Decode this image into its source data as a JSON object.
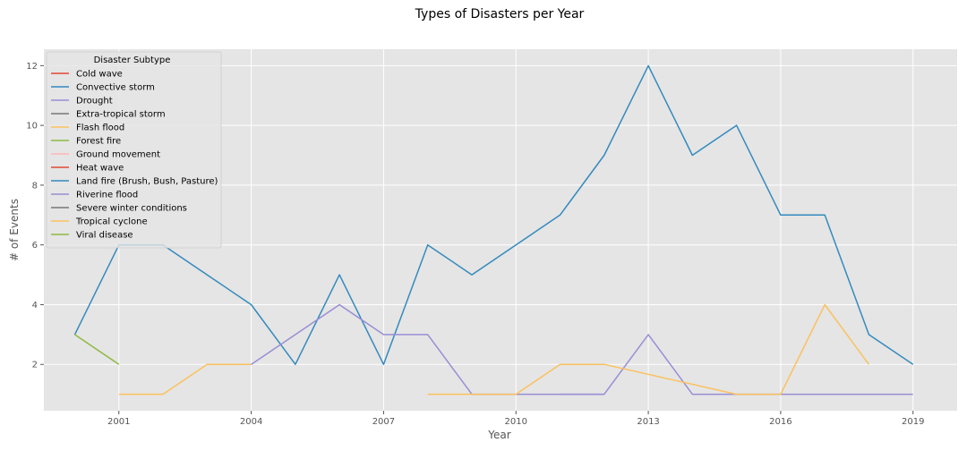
{
  "chart_data": {
    "type": "line",
    "title": "Types of Disasters per Year",
    "xlabel": "Year",
    "ylabel": "# of Events",
    "xlim": [
      1999.3,
      2020.0
    ],
    "ylim": [
      0.45,
      12.55
    ],
    "x_ticks": [
      2001,
      2004,
      2007,
      2010,
      2013,
      2016,
      2019
    ],
    "y_ticks": [
      2,
      4,
      6,
      8,
      10,
      12
    ],
    "grid": true,
    "legend": {
      "title": "Disaster Subtype",
      "position": "top-left"
    },
    "series": [
      {
        "name": "Cold wave",
        "color": "#E24A33",
        "points": []
      },
      {
        "name": "Convective storm",
        "color": "#348ABD",
        "points": [
          [
            2000,
            3
          ],
          [
            2001,
            6
          ],
          [
            2002,
            6
          ],
          [
            2003,
            5
          ],
          [
            2004,
            4
          ],
          [
            2005,
            2
          ],
          [
            2006,
            5
          ],
          [
            2007,
            2
          ],
          [
            2008,
            6
          ],
          [
            2009,
            5
          ],
          [
            2010,
            6
          ],
          [
            2011,
            7
          ],
          [
            2012,
            9
          ],
          [
            2013,
            12
          ],
          [
            2014,
            9
          ],
          [
            2015,
            10
          ],
          [
            2016,
            7
          ],
          [
            2017,
            7
          ],
          [
            2018,
            3
          ],
          [
            2019,
            2
          ]
        ]
      },
      {
        "name": "Drought",
        "color": "#988ED5",
        "points": [
          [
            2011,
            1
          ],
          [
            2012,
            1
          ]
        ]
      },
      {
        "name": "Extra-tropical storm",
        "color": "#777777",
        "points": []
      },
      {
        "name": "Flash flood",
        "color": "#FBC15E",
        "points": [
          [
            2001,
            1
          ],
          [
            2002,
            1
          ],
          [
            2003,
            2
          ],
          [
            2004,
            2
          ]
        ]
      },
      {
        "name": "Forest fire",
        "color": "#8EBA42",
        "points": [
          [
            2000,
            3
          ],
          [
            2001,
            2
          ]
        ]
      },
      {
        "name": "Ground movement",
        "color": "#FFB5B8",
        "points": []
      },
      {
        "name": "Heat wave",
        "color": "#E24A33",
        "points": []
      },
      {
        "name": "Land fire (Brush, Bush, Pasture)",
        "color": "#348ABD",
        "points": []
      },
      {
        "name": "Riverine flood",
        "color": "#988ED5",
        "points": [
          [
            2004,
            2
          ],
          [
            2005,
            3
          ],
          [
            2006,
            4
          ],
          [
            2007,
            3
          ],
          [
            2008,
            3
          ],
          [
            2009,
            1
          ],
          [
            2010,
            1
          ],
          [
            2011,
            1
          ],
          [
            2012,
            1
          ],
          [
            2013,
            3
          ],
          [
            2014,
            1
          ],
          [
            2018,
            1
          ],
          [
            2019,
            1
          ]
        ]
      },
      {
        "name": "Severe winter conditions",
        "color": "#777777",
        "points": []
      },
      {
        "name": "Tropical cyclone",
        "color": "#FBC15E",
        "points": [
          [
            2008,
            1
          ],
          [
            2009,
            1
          ],
          [
            2010,
            1
          ],
          [
            2011,
            2
          ],
          [
            2012,
            2
          ],
          [
            2015,
            1
          ],
          [
            2016,
            1
          ],
          [
            2017,
            4
          ],
          [
            2018,
            2
          ]
        ]
      },
      {
        "name": "Viral disease",
        "color": "#8EBA42",
        "points": []
      }
    ]
  }
}
